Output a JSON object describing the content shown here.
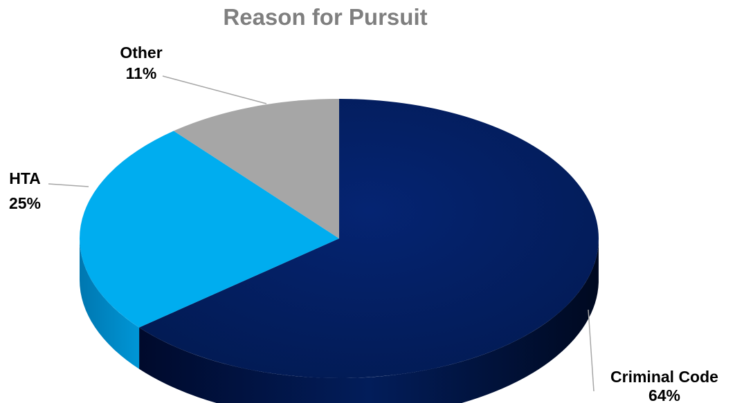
{
  "chart_data": {
    "type": "pie",
    "title": "Reason for Pursuit",
    "slices": [
      {
        "label": "Criminal Code",
        "value": 64,
        "display": "64%",
        "color": "#021d5a"
      },
      {
        "label": "HTA",
        "value": 25,
        "display": "25%",
        "color": "#00adef"
      },
      {
        "label": "Other",
        "value": 11,
        "display": "11%",
        "color": "#a6a6a6"
      }
    ],
    "legend": "none",
    "style": "3d"
  }
}
